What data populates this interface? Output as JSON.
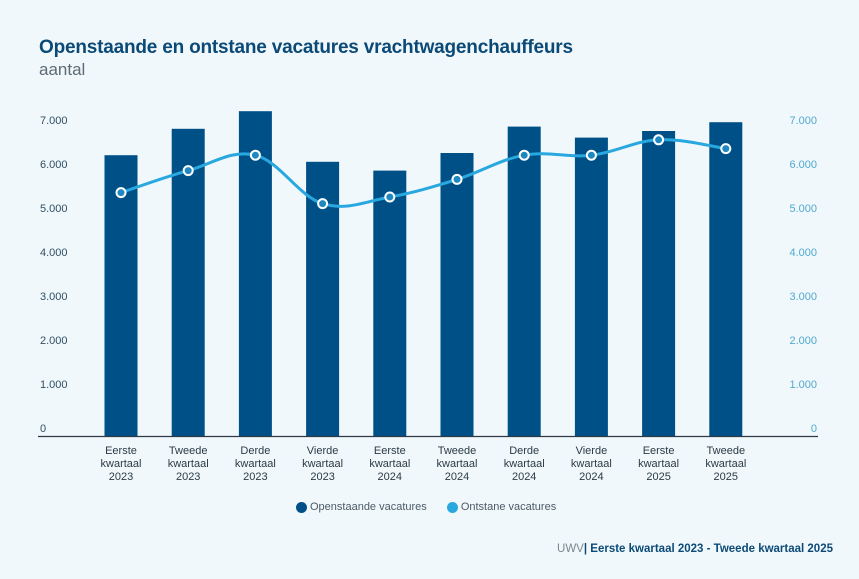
{
  "title": "Openstaande en ontstane vacatures vrachtwagenchauffeurs",
  "subtitle": "aantal",
  "chart_data": {
    "type": "bar",
    "title": "Openstaande en ontstane vacatures vrachtwagenchauffeurs",
    "subtitle": "aantal",
    "xlabel": "",
    "ylabel": "aantal",
    "ylim": [
      0,
      7000
    ],
    "yticks": [
      0,
      1000,
      2000,
      3000,
      4000,
      5000,
      6000,
      7000
    ],
    "ytick_labels": [
      "0",
      "1.000",
      "2.000",
      "3.000",
      "4.000",
      "5.000",
      "6.000",
      "7.000"
    ],
    "right_axis": true,
    "grid": false,
    "legend_position": "bottom-center",
    "categories": [
      [
        "Eerste",
        "kwartaal",
        "2023"
      ],
      [
        "Tweede",
        "kwartaal",
        "2023"
      ],
      [
        "Derde",
        "kwartaal",
        "2023"
      ],
      [
        "Vierde",
        "kwartaal",
        "2023"
      ],
      [
        "Eerste",
        "kwartaal",
        "2024"
      ],
      [
        "Tweede",
        "kwartaal",
        "2024"
      ],
      [
        "Derde",
        "kwartaal",
        "2024"
      ],
      [
        "Vierde",
        "kwartaal",
        "2024"
      ],
      [
        "Eerste",
        "kwartaal",
        "2025"
      ],
      [
        "Tweede",
        "kwartaal",
        "2025"
      ]
    ],
    "series": [
      {
        "name": "Openstaande vacatures",
        "type": "bar",
        "color": "#005088",
        "values": [
          6200,
          6800,
          7200,
          6050,
          5850,
          6250,
          6850,
          6600,
          6750,
          6950
        ]
      },
      {
        "name": "Ontstane vacatures",
        "type": "line",
        "color": "#29a8e0",
        "values": [
          5350,
          5850,
          6200,
          5100,
          5250,
          5650,
          6200,
          6200,
          6550,
          6350
        ]
      }
    ]
  },
  "legend": [
    {
      "label": "Openstaande vacatures",
      "color": "#005088"
    },
    {
      "label": "Ontstane vacatures",
      "color": "#29a8e0"
    }
  ],
  "footer": {
    "source": "UWV",
    "separator": "|",
    "period": "Eerste kwartaal 2023 - Tweede kwartaal 2025"
  }
}
